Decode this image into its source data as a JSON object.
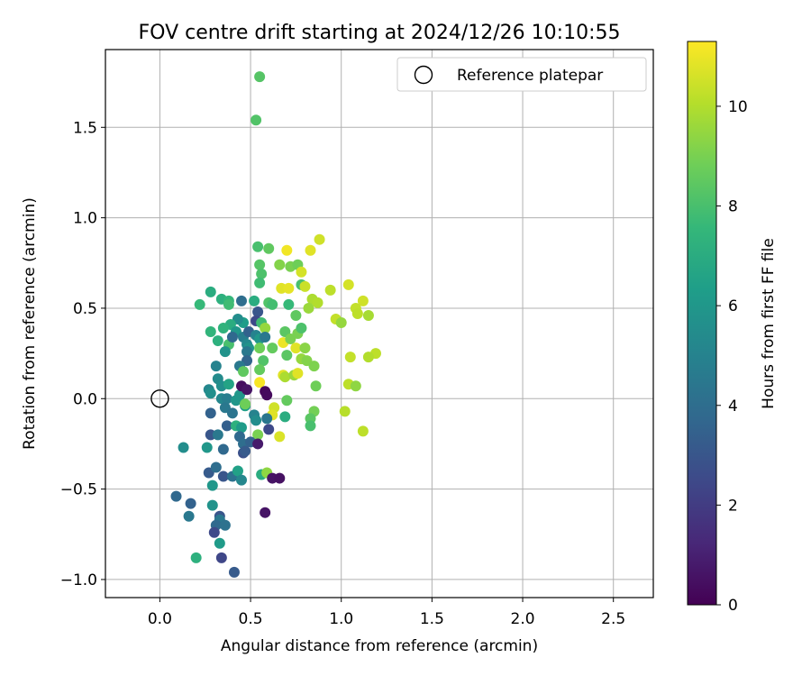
{
  "chart_data": {
    "type": "scatter",
    "title": "FOV centre drift starting at 2024/12/26 10:10:55",
    "xlabel": "Angular distance from reference (arcmin)",
    "ylabel": "Rotation from reference (arcmin)",
    "xlim": [
      -0.3,
      2.72
    ],
    "ylim": [
      -1.1,
      1.93
    ],
    "xticks": [
      0.0,
      0.5,
      1.0,
      1.5,
      2.0,
      2.5
    ],
    "xtick_labels": [
      "0.0",
      "0.5",
      "1.0",
      "1.5",
      "2.0",
      "2.5"
    ],
    "yticks": [
      -1.0,
      -0.5,
      0.0,
      0.5,
      1.0,
      1.5
    ],
    "ytick_labels": [
      "−1.0",
      "−0.5",
      "0.0",
      "0.5",
      "1.0",
      "1.5"
    ],
    "grid": true,
    "legend": {
      "placement": "top-right",
      "entries": [
        "Reference platepar"
      ]
    },
    "reference_point": {
      "x": 0.0,
      "y": 0.0
    },
    "colorbar": {
      "label": "Hours from first FF file",
      "colormap": "viridis",
      "range": [
        0,
        11.3
      ],
      "ticks": [
        0,
        2,
        4,
        6,
        8,
        10
      ],
      "tick_labels": [
        "0",
        "2",
        "4",
        "6",
        "8",
        "10"
      ]
    },
    "points": [
      [
        0.55,
        1.78,
        8.3
      ],
      [
        0.53,
        1.54,
        8.2
      ],
      [
        0.88,
        0.88,
        10.5
      ],
      [
        0.7,
        0.82,
        11.1
      ],
      [
        0.83,
        0.82,
        10.8
      ],
      [
        0.54,
        0.84,
        8.0
      ],
      [
        0.6,
        0.83,
        8.5
      ],
      [
        0.55,
        0.74,
        8.3
      ],
      [
        0.66,
        0.74,
        9.2
      ],
      [
        0.72,
        0.73,
        9.0
      ],
      [
        0.76,
        0.74,
        8.8
      ],
      [
        0.78,
        0.7,
        10.6
      ],
      [
        0.56,
        0.69,
        8.1
      ],
      [
        0.55,
        0.64,
        7.8
      ],
      [
        0.67,
        0.61,
        10.8
      ],
      [
        0.71,
        0.61,
        10.9
      ],
      [
        0.78,
        0.63,
        8.0
      ],
      [
        0.8,
        0.62,
        10.4
      ],
      [
        0.28,
        0.59,
        7.0
      ],
      [
        0.34,
        0.55,
        7.2
      ],
      [
        0.38,
        0.54,
        7.5
      ],
      [
        0.45,
        0.54,
        4.0
      ],
      [
        0.22,
        0.52,
        7.6
      ],
      [
        0.38,
        0.52,
        7.8
      ],
      [
        0.52,
        0.54,
        7.0
      ],
      [
        0.6,
        0.53,
        8.2
      ],
      [
        0.62,
        0.52,
        7.9
      ],
      [
        0.71,
        0.52,
        7.6
      ],
      [
        0.75,
        0.46,
        8.5
      ],
      [
        0.84,
        0.55,
        9.9
      ],
      [
        0.87,
        0.53,
        10.0
      ],
      [
        0.82,
        0.5,
        9.6
      ],
      [
        0.94,
        0.6,
        10.2
      ],
      [
        1.04,
        0.63,
        10.6
      ],
      [
        1.12,
        0.54,
        10.5
      ],
      [
        1.08,
        0.5,
        10.3
      ],
      [
        1.09,
        0.47,
        10.2
      ],
      [
        1.15,
        0.46,
        9.8
      ],
      [
        0.97,
        0.44,
        10.3
      ],
      [
        1.0,
        0.42,
        9.5
      ],
      [
        0.54,
        0.48,
        3.0
      ],
      [
        0.53,
        0.43,
        2.5
      ],
      [
        0.56,
        0.42,
        7.8
      ],
      [
        0.58,
        0.39,
        9.5
      ],
      [
        0.46,
        0.42,
        6.3
      ],
      [
        0.43,
        0.44,
        5.5
      ],
      [
        0.39,
        0.41,
        7.0
      ],
      [
        0.35,
        0.39,
        7.3
      ],
      [
        0.42,
        0.37,
        6.0
      ],
      [
        0.46,
        0.34,
        4.8
      ],
      [
        0.49,
        0.37,
        3.5
      ],
      [
        0.53,
        0.35,
        5.0
      ],
      [
        0.55,
        0.33,
        6.0
      ],
      [
        0.58,
        0.34,
        4.5
      ],
      [
        0.28,
        0.37,
        7.4
      ],
      [
        0.32,
        0.32,
        7.2
      ],
      [
        0.38,
        0.3,
        8.0
      ],
      [
        0.4,
        0.34,
        3.8
      ],
      [
        0.48,
        0.3,
        5.3
      ],
      [
        0.49,
        0.28,
        5.8
      ],
      [
        0.55,
        0.28,
        8.8
      ],
      [
        0.62,
        0.28,
        8.6
      ],
      [
        0.68,
        0.31,
        11.0
      ],
      [
        0.69,
        0.37,
        8.4
      ],
      [
        0.72,
        0.33,
        9.0
      ],
      [
        0.75,
        0.28,
        10.8
      ],
      [
        0.76,
        0.36,
        9.0
      ],
      [
        0.78,
        0.39,
        8.1
      ],
      [
        0.8,
        0.28,
        9.3
      ],
      [
        0.7,
        0.24,
        8.4
      ],
      [
        0.78,
        0.22,
        9.5
      ],
      [
        0.81,
        0.21,
        9.2
      ],
      [
        0.85,
        0.18,
        9.1
      ],
      [
        0.57,
        0.21,
        8.2
      ],
      [
        0.36,
        0.26,
        5.8
      ],
      [
        0.48,
        0.26,
        4.5
      ],
      [
        0.48,
        0.21,
        3.6
      ],
      [
        0.31,
        0.18,
        5.0
      ],
      [
        0.44,
        0.18,
        4.5
      ],
      [
        0.46,
        0.15,
        8.5
      ],
      [
        0.55,
        0.16,
        8.6
      ],
      [
        0.55,
        0.09,
        11.2
      ],
      [
        0.68,
        0.13,
        10.8
      ],
      [
        0.69,
        0.12,
        9.9
      ],
      [
        0.74,
        0.13,
        9.6
      ],
      [
        0.76,
        0.14,
        10.8
      ],
      [
        1.19,
        0.25,
        10.2
      ],
      [
        1.15,
        0.23,
        10.0
      ],
      [
        1.05,
        0.23,
        10.3
      ],
      [
        1.04,
        0.08,
        10.2
      ],
      [
        1.08,
        0.07,
        9.4
      ],
      [
        0.86,
        0.07,
        8.8
      ],
      [
        0.32,
        0.11,
        5.4
      ],
      [
        0.34,
        0.07,
        5.6
      ],
      [
        0.38,
        0.08,
        6.6
      ],
      [
        0.27,
        0.05,
        5.2
      ],
      [
        0.28,
        0.03,
        5.6
      ],
      [
        0.34,
        0.0,
        5.2
      ],
      [
        0.37,
        0.0,
        4.8
      ],
      [
        0.42,
        -0.01,
        6.0
      ],
      [
        0.44,
        0.02,
        6.0
      ],
      [
        0.45,
        0.07,
        0.4
      ],
      [
        0.48,
        0.05,
        0.6
      ],
      [
        0.47,
        -0.04,
        6.4
      ],
      [
        0.47,
        -0.03,
        8.8
      ],
      [
        0.58,
        0.04,
        0.2
      ],
      [
        0.59,
        0.02,
        0.3
      ],
      [
        0.63,
        -0.05,
        10.5
      ],
      [
        0.62,
        -0.09,
        10.8
      ],
      [
        0.7,
        -0.01,
        8.6
      ],
      [
        0.69,
        -0.1,
        7.0
      ],
      [
        0.85,
        -0.07,
        8.9
      ],
      [
        0.83,
        -0.11,
        8.4
      ],
      [
        0.83,
        -0.15,
        8.0
      ],
      [
        1.02,
        -0.07,
        10.1
      ],
      [
        1.12,
        -0.18,
        10.2
      ],
      [
        0.36,
        -0.05,
        4.5
      ],
      [
        0.4,
        -0.08,
        4.3
      ],
      [
        0.28,
        -0.08,
        3.5
      ],
      [
        0.37,
        -0.15,
        3.4
      ],
      [
        0.42,
        -0.15,
        7.2
      ],
      [
        0.45,
        -0.16,
        6.2
      ],
      [
        0.52,
        -0.09,
        5.0
      ],
      [
        0.53,
        -0.12,
        5.5
      ],
      [
        0.59,
        -0.11,
        4.4
      ],
      [
        0.6,
        -0.17,
        2.5
      ],
      [
        0.54,
        -0.2,
        9.0
      ],
      [
        0.66,
        -0.21,
        10.7
      ],
      [
        0.44,
        -0.21,
        3.8
      ],
      [
        0.46,
        -0.25,
        4.0
      ],
      [
        0.5,
        -0.24,
        3.5
      ],
      [
        0.54,
        -0.25,
        0.8
      ],
      [
        0.28,
        -0.2,
        3.0
      ],
      [
        0.32,
        -0.2,
        4.5
      ],
      [
        0.35,
        -0.28,
        3.8
      ],
      [
        0.46,
        -0.3,
        2.8
      ],
      [
        0.13,
        -0.27,
        5.5
      ],
      [
        0.26,
        -0.27,
        6.0
      ],
      [
        0.47,
        -0.29,
        3.2
      ],
      [
        0.27,
        -0.41,
        3.2
      ],
      [
        0.31,
        -0.38,
        4.0
      ],
      [
        0.35,
        -0.43,
        3.0
      ],
      [
        0.4,
        -0.43,
        4.2
      ],
      [
        0.43,
        -0.4,
        6.5
      ],
      [
        0.45,
        -0.45,
        5.2
      ],
      [
        0.56,
        -0.42,
        7.0
      ],
      [
        0.59,
        -0.41,
        9.4
      ],
      [
        0.62,
        -0.44,
        0.6
      ],
      [
        0.66,
        -0.44,
        0.5
      ],
      [
        0.29,
        -0.48,
        6.0
      ],
      [
        0.09,
        -0.54,
        3.8
      ],
      [
        0.17,
        -0.58,
        3.5
      ],
      [
        0.29,
        -0.59,
        5.8
      ],
      [
        0.16,
        -0.65,
        4.5
      ],
      [
        0.33,
        -0.65,
        3.0
      ],
      [
        0.33,
        -0.67,
        4.5
      ],
      [
        0.31,
        -0.7,
        3.8
      ],
      [
        0.36,
        -0.7,
        4.2
      ],
      [
        0.58,
        -0.63,
        0.6
      ],
      [
        0.3,
        -0.74,
        2.5
      ],
      [
        0.33,
        -0.8,
        6.2
      ],
      [
        0.2,
        -0.88,
        7.2
      ],
      [
        0.34,
        -0.88,
        2.4
      ],
      [
        0.41,
        -0.96,
        3.2
      ]
    ]
  }
}
